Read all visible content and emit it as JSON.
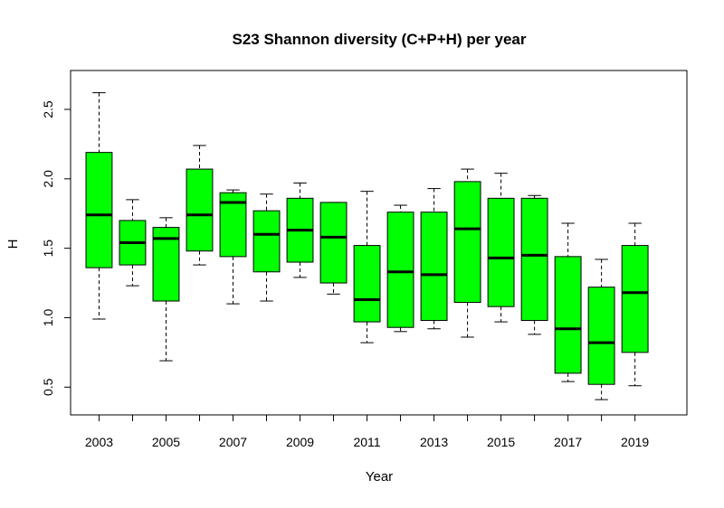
{
  "chart_data": {
    "type": "boxplot",
    "title": "S23 Shannon diversity (C+P+H) per year",
    "xlabel": "Year",
    "ylabel": "H",
    "ylim": [
      0.3,
      2.78
    ],
    "yticks": [
      0.5,
      1.0,
      1.5,
      2.0,
      2.5
    ],
    "ytick_labels": [
      "0.5",
      "1.0",
      "1.5",
      "2.0",
      "2.5"
    ],
    "x_tick_labels": [
      "2003",
      "2005",
      "2007",
      "2009",
      "2011",
      "2013",
      "2015",
      "2017",
      "2019"
    ],
    "box_color": "#00ff00",
    "grid": false,
    "categories": [
      "2003",
      "2004",
      "2005",
      "2006",
      "2007",
      "2008",
      "2009",
      "2010",
      "2011",
      "2012",
      "2013",
      "2014",
      "2015",
      "2016",
      "2017",
      "2018",
      "2019"
    ],
    "boxes": [
      {
        "year": "2003",
        "min": 0.99,
        "q1": 1.36,
        "median": 1.74,
        "q3": 2.19,
        "max": 2.62
      },
      {
        "year": "2004",
        "min": 1.23,
        "q1": 1.38,
        "median": 1.54,
        "q3": 1.7,
        "max": 1.85
      },
      {
        "year": "2005",
        "min": 0.69,
        "q1": 1.12,
        "median": 1.57,
        "q3": 1.65,
        "max": 1.72
      },
      {
        "year": "2006",
        "min": 1.38,
        "q1": 1.48,
        "median": 1.74,
        "q3": 2.07,
        "max": 2.24
      },
      {
        "year": "2007",
        "min": 1.1,
        "q1": 1.44,
        "median": 1.83,
        "q3": 1.9,
        "max": 1.92
      },
      {
        "year": "2008",
        "min": 1.12,
        "q1": 1.33,
        "median": 1.6,
        "q3": 1.77,
        "max": 1.89
      },
      {
        "year": "2009",
        "min": 1.29,
        "q1": 1.4,
        "median": 1.63,
        "q3": 1.86,
        "max": 1.97
      },
      {
        "year": "2010",
        "min": 1.17,
        "q1": 1.25,
        "median": 1.58,
        "q3": 1.83,
        "max": 1.83
      },
      {
        "year": "2011",
        "min": 0.82,
        "q1": 0.97,
        "median": 1.13,
        "q3": 1.52,
        "max": 1.91
      },
      {
        "year": "2012",
        "min": 0.9,
        "q1": 0.93,
        "median": 1.33,
        "q3": 1.76,
        "max": 1.81
      },
      {
        "year": "2013",
        "min": 0.92,
        "q1": 0.98,
        "median": 1.31,
        "q3": 1.76,
        "max": 1.93
      },
      {
        "year": "2014",
        "min": 0.86,
        "q1": 1.11,
        "median": 1.64,
        "q3": 1.98,
        "max": 2.07
      },
      {
        "year": "2015",
        "min": 0.97,
        "q1": 1.08,
        "median": 1.43,
        "q3": 1.86,
        "max": 2.04
      },
      {
        "year": "2016",
        "min": 0.88,
        "q1": 0.98,
        "median": 1.45,
        "q3": 1.86,
        "max": 1.88
      },
      {
        "year": "2017",
        "min": 0.54,
        "q1": 0.6,
        "median": 0.92,
        "q3": 1.44,
        "max": 1.68
      },
      {
        "year": "2018",
        "min": 0.41,
        "q1": 0.52,
        "median": 0.82,
        "q3": 1.22,
        "max": 1.42
      },
      {
        "year": "2019",
        "min": 0.51,
        "q1": 0.75,
        "median": 1.18,
        "q3": 1.52,
        "max": 1.68
      }
    ]
  }
}
